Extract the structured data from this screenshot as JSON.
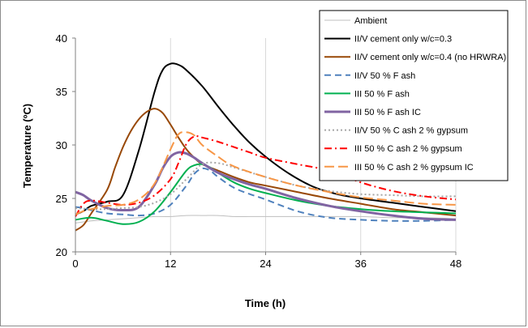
{
  "chart_data": {
    "type": "line",
    "title": "",
    "xlabel": "Time (h)",
    "ylabel": "Temperature (ºC)",
    "xlim": [
      0,
      48
    ],
    "ylim": [
      20,
      40
    ],
    "x_ticks": [
      "0",
      "12",
      "24",
      "36",
      "48"
    ],
    "y_ticks": [
      "20",
      "25",
      "30",
      "35",
      "40"
    ],
    "grid": "vertical",
    "legend": "top-right",
    "series": [
      {
        "name": "Ambient",
        "color": "#bfbfbf",
        "dash": "solid",
        "width": 1,
        "x": [
          0,
          2,
          4,
          6,
          8,
          10,
          12,
          14,
          16,
          18,
          20,
          22,
          24,
          28,
          32,
          36,
          40,
          44,
          48
        ],
        "y": [
          22.7,
          22.9,
          23.0,
          23.1,
          23.2,
          23.3,
          23.3,
          23.4,
          23.4,
          23.4,
          23.3,
          23.3,
          23.3,
          23.3,
          23.3,
          23.3,
          23.2,
          23.2,
          23.1
        ]
      },
      {
        "name": "II/V cement only w/c=0.3",
        "color": "#000000",
        "dash": "solid",
        "width": 2,
        "x": [
          0,
          1,
          2,
          4,
          6,
          8,
          10,
          11,
          12,
          13,
          14,
          16,
          18,
          20,
          22,
          24,
          27,
          30,
          33,
          36,
          40,
          44,
          48
        ],
        "y": [
          23.5,
          23.8,
          24.3,
          24.7,
          25.3,
          29.5,
          35.0,
          37.0,
          37.6,
          37.5,
          37.0,
          35.5,
          33.6,
          31.8,
          30.2,
          28.9,
          27.3,
          26.1,
          25.4,
          25.0,
          24.6,
          24.2,
          23.8
        ]
      },
      {
        "name": "II/V cement only w/c=0.4 (no HRWRA)",
        "color": "#984807",
        "dash": "solid",
        "width": 2,
        "x": [
          0,
          1,
          2,
          4,
          5,
          6,
          7,
          8,
          9,
          10,
          11,
          12,
          13,
          14,
          15,
          16,
          18,
          20,
          22,
          24,
          28,
          32,
          36,
          40,
          44,
          48
        ],
        "y": [
          22.0,
          22.5,
          23.6,
          25.8,
          27.9,
          29.8,
          31.3,
          32.4,
          33.1,
          33.4,
          33.0,
          31.9,
          30.7,
          29.6,
          28.8,
          28.2,
          27.6,
          27.0,
          26.5,
          26.2,
          25.6,
          25.0,
          24.5,
          24.0,
          23.7,
          23.4
        ]
      },
      {
        "name": "II/V 50 % F ash",
        "color": "#4f81bd",
        "dash": "dash",
        "width": 2,
        "x": [
          0,
          1,
          2,
          4,
          6,
          8,
          10,
          12,
          14,
          15,
          16,
          17,
          18,
          20,
          22,
          24,
          28,
          32,
          36,
          40,
          44,
          48
        ],
        "y": [
          24.2,
          24.1,
          23.9,
          23.6,
          23.5,
          23.4,
          23.6,
          24.4,
          26.2,
          27.3,
          27.8,
          27.6,
          27.0,
          26.0,
          25.4,
          24.9,
          23.8,
          23.2,
          23.0,
          22.9,
          22.9,
          23.0
        ]
      },
      {
        "name": "III 50 % F ash",
        "color": "#00b050",
        "dash": "solid",
        "width": 2,
        "x": [
          0,
          2,
          4,
          6,
          8,
          10,
          12,
          14,
          15,
          16,
          17,
          18,
          20,
          22,
          24,
          28,
          32,
          36,
          40,
          44,
          48
        ],
        "y": [
          23.0,
          23.2,
          22.9,
          22.6,
          22.8,
          23.8,
          25.6,
          27.6,
          28.1,
          28.2,
          27.9,
          27.4,
          26.5,
          25.9,
          25.5,
          24.8,
          24.3,
          24.0,
          23.8,
          23.7,
          23.6
        ]
      },
      {
        "name": "III 50 % F ash IC",
        "color": "#8064a2",
        "dash": "solid",
        "width": 3,
        "x": [
          0,
          1,
          2,
          4,
          6,
          8,
          10,
          11,
          12,
          13,
          14,
          15,
          16,
          18,
          20,
          22,
          24,
          28,
          32,
          36,
          40,
          44,
          48
        ],
        "y": [
          25.6,
          25.3,
          24.8,
          24.1,
          23.9,
          24.2,
          26.3,
          27.8,
          28.9,
          29.3,
          29.2,
          28.8,
          28.3,
          27.4,
          26.8,
          26.3,
          25.9,
          25.0,
          24.3,
          23.8,
          23.4,
          23.1,
          23.0
        ]
      },
      {
        "name": "II/V 50 % C ash 2 % gypsum",
        "color": "#a6a6a6",
        "dash": "dot",
        "width": 2,
        "x": [
          0,
          2,
          4,
          6,
          8,
          10,
          12,
          14,
          16,
          18,
          20,
          24,
          28,
          32,
          36,
          40,
          44,
          48
        ],
        "y": [
          24.1,
          24.0,
          24.0,
          24.1,
          24.2,
          24.6,
          25.4,
          26.8,
          28.2,
          28.3,
          27.9,
          27.0,
          26.2,
          25.7,
          25.4,
          25.3,
          25.2,
          25.2
        ]
      },
      {
        "name": "III 50 % C ash 2 % gypsum",
        "color": "#ff0000",
        "dash": "dashdot",
        "width": 2,
        "x": [
          0,
          1,
          2,
          4,
          6,
          8,
          10,
          12,
          13,
          14,
          15,
          16,
          18,
          20,
          22,
          24,
          28,
          32,
          36,
          40,
          44,
          48
        ],
        "y": [
          23.3,
          24.5,
          24.8,
          24.6,
          24.4,
          24.6,
          25.3,
          26.8,
          28.3,
          30.1,
          30.8,
          30.7,
          30.3,
          29.8,
          29.3,
          28.8,
          28.2,
          27.6,
          26.5,
          25.7,
          25.2,
          24.9
        ]
      },
      {
        "name": "III 50 % C ash 2 % gypsum IC",
        "color": "#f79646",
        "dash": "longdash",
        "width": 2,
        "x": [
          0,
          1,
          2,
          4,
          6,
          8,
          10,
          12,
          13,
          14,
          15,
          16,
          18,
          20,
          24,
          28,
          32,
          36,
          40,
          44,
          48
        ],
        "y": [
          23.5,
          23.8,
          24.0,
          24.3,
          24.4,
          24.9,
          26.4,
          29.6,
          31.0,
          31.2,
          30.9,
          30.0,
          28.9,
          28.0,
          27.0,
          26.2,
          25.6,
          25.1,
          24.8,
          24.5,
          24.4
        ]
      }
    ]
  }
}
